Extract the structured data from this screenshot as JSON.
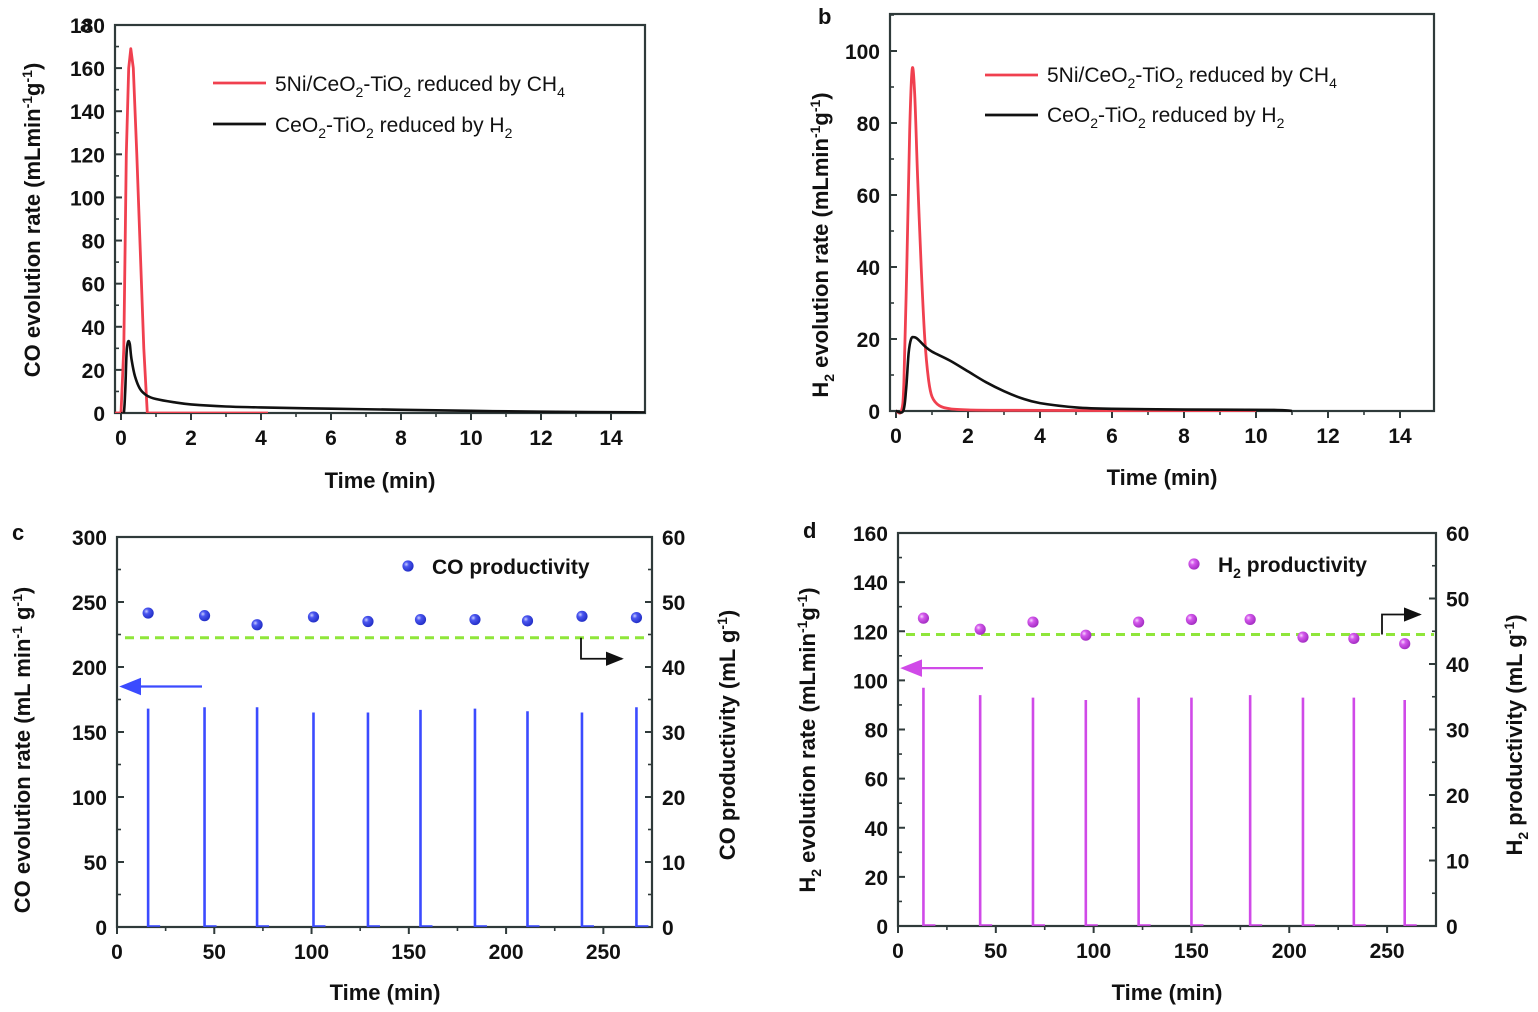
{
  "colors": {
    "red": "#f0404f",
    "black": "#111111",
    "blue": "#3b4bff",
    "blue_marker": "#3a46e8",
    "magenta": "#d04ae8",
    "magenta_marker": "#c845e6",
    "green_dash": "#8fe63a",
    "frame": "#2f3a3a"
  },
  "chart_data": [
    {
      "panel": "a",
      "type": "line",
      "xlabel": "Time (min)",
      "ylabel": "CO evolution rate (mLmin-1g-1)",
      "ylabel_parts": [
        "CO evolution rate (mLmin",
        "-1",
        "g",
        "-1",
        ")"
      ],
      "xlim": [
        -0.2,
        15
      ],
      "ylim": [
        0,
        180
      ],
      "xticks": [
        0,
        2,
        4,
        6,
        8,
        10,
        12,
        14
      ],
      "yticks": [
        0,
        20,
        40,
        60,
        80,
        100,
        120,
        140,
        160,
        180
      ],
      "legend_position": "top-right",
      "series": [
        {
          "name": "5Ni/CeO2-TiO2 reduced by CH4",
          "label_parts": [
            "5Ni/CeO",
            "2",
            "-TiO",
            "2",
            " reduced by CH",
            "4"
          ],
          "color": "red",
          "x": [
            -0.2,
            0.0,
            0.08,
            0.15,
            0.22,
            0.28,
            0.35,
            0.45,
            0.55,
            0.65,
            0.75,
            1.0,
            2.0,
            4.2
          ],
          "y": [
            0,
            0,
            30,
            120,
            160,
            169,
            160,
            120,
            75,
            30,
            0,
            0,
            0,
            0
          ]
        },
        {
          "name": "CeO2-TiO2 reduced by H2",
          "label_parts": [
            "CeO",
            "2",
            "-TiO",
            "2",
            " reduced by H",
            "2"
          ],
          "color": "black",
          "x": [
            0.0,
            0.08,
            0.12,
            0.16,
            0.2,
            0.25,
            0.3,
            0.4,
            0.55,
            0.75,
            1.0,
            1.5,
            2.0,
            3.0,
            4.0,
            6.0,
            8.0,
            10.0,
            12.0,
            15.0
          ],
          "y": [
            0,
            0,
            10,
            28,
            33,
            32,
            25,
            17,
            11,
            8,
            6.5,
            5,
            4,
            3,
            2.6,
            2.0,
            1.5,
            1.0,
            0.6,
            0.3
          ]
        }
      ]
    },
    {
      "panel": "b",
      "type": "line",
      "xlabel": "Time (min)",
      "ylabel": "H2 evolution rate (mLmin-1g-1)",
      "ylabel_parts": [
        "H",
        "2",
        " evolution rate (mLmin",
        "-1",
        "g",
        "-1",
        ")"
      ],
      "xlim": [
        0,
        15
      ],
      "ylim": [
        0,
        110
      ],
      "xticks": [
        0,
        2,
        4,
        6,
        8,
        10,
        12,
        14
      ],
      "yticks": [
        0,
        20,
        40,
        60,
        80,
        100
      ],
      "legend_position": "top-right",
      "series": [
        {
          "name": "5Ni/CeO2-TiO2 reduced by CH4",
          "label_parts": [
            "5Ni/CeO",
            "2",
            "-TiO",
            "2",
            " reduced by CH",
            "4"
          ],
          "color": "red",
          "x": [
            0.0,
            0.15,
            0.22,
            0.3,
            0.38,
            0.45,
            0.52,
            0.6,
            0.7,
            0.8,
            0.9,
            1.0,
            1.2,
            1.5,
            2.0,
            3.0,
            6.0,
            10.0
          ],
          "y": [
            0,
            0,
            8,
            40,
            78,
            95,
            88,
            65,
            40,
            20,
            9,
            4,
            1.5,
            0.6,
            0.3,
            0.2,
            0.1,
            0.1
          ]
        },
        {
          "name": "CeO2-TiO2 reduced by H2",
          "label_parts": [
            "CeO",
            "2",
            "-TiO",
            "2",
            " reduced by H",
            "2"
          ],
          "color": "black",
          "x": [
            0.0,
            0.2,
            0.28,
            0.35,
            0.42,
            0.5,
            0.6,
            0.8,
            1.0,
            1.5,
            2.0,
            2.5,
            3.0,
            3.5,
            4.0,
            5.0,
            6.0,
            8.0,
            10.5,
            11.0
          ],
          "y": [
            0,
            0,
            6,
            16,
            20,
            20.5,
            20,
            18,
            16.5,
            14,
            11,
            8,
            5.5,
            3.5,
            2.2,
            1.0,
            0.6,
            0.4,
            0.3,
            0
          ]
        }
      ]
    },
    {
      "panel": "c",
      "type": "line+scatter",
      "xlabel": "Time (min)",
      "ylabel_left": "CO evolution rate (mL min-1 g-1)",
      "ylabel_left_parts": [
        "CO evolution rate (mL min",
        "-1",
        " g",
        "-1",
        ")"
      ],
      "ylabel_right": "CO productivity (mL g-1)",
      "ylabel_right_parts": [
        "CO productivity (mL g",
        "-1",
        ")"
      ],
      "xlim": [
        0,
        275
      ],
      "ylim_left": [
        0,
        300
      ],
      "ylim_right": [
        0,
        60
      ],
      "xticks": [
        0,
        50,
        100,
        150,
        200,
        250
      ],
      "yticks_left": [
        0,
        50,
        100,
        150,
        200,
        250,
        300
      ],
      "yticks_right": [
        0,
        10,
        20,
        30,
        40,
        50,
        60
      ],
      "legend_position": "top-right",
      "legend_label": "CO productivity",
      "pulses": {
        "name": "CO evolution rate",
        "color": "blue",
        "x": [
          16,
          45,
          72,
          101,
          129,
          156,
          184,
          211,
          239,
          267
        ],
        "y": [
          168,
          169,
          169,
          165,
          165,
          167,
          168,
          166,
          165,
          169
        ]
      },
      "scatter": {
        "name": "CO productivity",
        "color": "blue_marker",
        "x": [
          16,
          45,
          72,
          101,
          129,
          156,
          184,
          211,
          239,
          267
        ],
        "y": [
          48.3,
          47.9,
          46.5,
          47.7,
          47.0,
          47.3,
          47.3,
          47.1,
          47.8,
          47.6
        ]
      },
      "reference_line": {
        "axis": "right",
        "value": 44.5,
        "style": "dashed",
        "color": "green_dash"
      },
      "arrows": [
        {
          "points_to": "left-axis",
          "color": "blue",
          "at_y_left": 185
        },
        {
          "points_to": "right-axis",
          "color": "black"
        }
      ]
    },
    {
      "panel": "d",
      "type": "line+scatter",
      "xlabel": "Time (min)",
      "ylabel_left": "H2 evolution rate (mLmin-1g-1)",
      "ylabel_left_parts": [
        "H",
        "2",
        " evolution rate (mLmin",
        "-1",
        "g",
        "-1",
        ")"
      ],
      "ylabel_right": "H2 productivity (mL g-1)",
      "ylabel_right_parts": [
        "H",
        "2",
        " productivity (mL g",
        "-1",
        ")"
      ],
      "xlim": [
        0,
        275
      ],
      "ylim_left": [
        0,
        160
      ],
      "ylim_right": [
        0,
        60
      ],
      "xticks": [
        0,
        50,
        100,
        150,
        200,
        250
      ],
      "yticks_left": [
        0,
        20,
        40,
        60,
        80,
        100,
        120,
        140,
        160
      ],
      "yticks_right": [
        0,
        10,
        20,
        30,
        40,
        50,
        60
      ],
      "legend_position": "top-right",
      "legend_label_parts": [
        "H",
        "2",
        " productivity"
      ],
      "pulses": {
        "name": "H2 evolution rate",
        "color": "magenta",
        "x": [
          13,
          42,
          69,
          96,
          123,
          150,
          180,
          207,
          233,
          259
        ],
        "y": [
          97,
          94,
          93,
          92,
          93,
          93,
          94,
          93,
          93,
          92
        ]
      },
      "scatter": {
        "name": "H2 productivity",
        "color": "magenta_marker",
        "x": [
          13,
          42,
          69,
          96,
          123,
          150,
          180,
          207,
          233,
          259
        ],
        "y": [
          47.0,
          45.3,
          46.4,
          44.4,
          46.4,
          46.8,
          46.8,
          44.1,
          43.9,
          43.1
        ]
      },
      "reference_line": {
        "axis": "right",
        "value": 44.5,
        "style": "dashed",
        "color": "green_dash"
      },
      "arrows": [
        {
          "points_to": "left-axis",
          "color": "magenta",
          "at_y_left": 105
        },
        {
          "points_to": "right-axis",
          "color": "black"
        }
      ]
    }
  ],
  "panel_letters": [
    "a",
    "b",
    "c",
    "d"
  ]
}
